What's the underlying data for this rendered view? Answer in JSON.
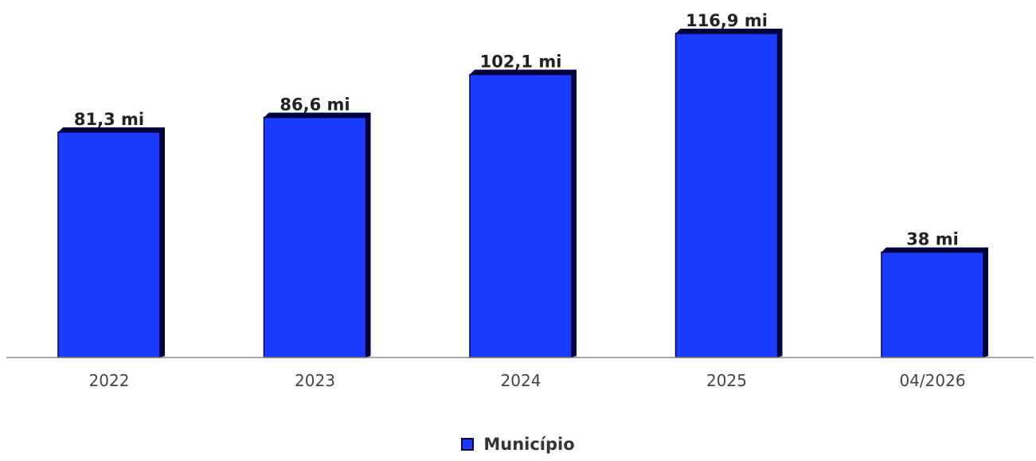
{
  "chart_data": {
    "type": "bar",
    "categories": [
      "2022",
      "2023",
      "2024",
      "2025",
      "04/2026"
    ],
    "series": [
      {
        "name": "Município",
        "values": [
          81.3,
          86.6,
          102.1,
          116.9,
          38
        ],
        "labels": [
          "81,3 mi",
          "86,6 mi",
          "102,1 mi",
          "116,9 mi",
          "38 mi"
        ]
      }
    ],
    "ylim": [
      0,
      116.9
    ],
    "grid": false,
    "legend_position": "bottom-center"
  },
  "colors": {
    "bar_fill": "#1b3cff",
    "bar_shadow": "#00003c",
    "axis": "#888888"
  }
}
